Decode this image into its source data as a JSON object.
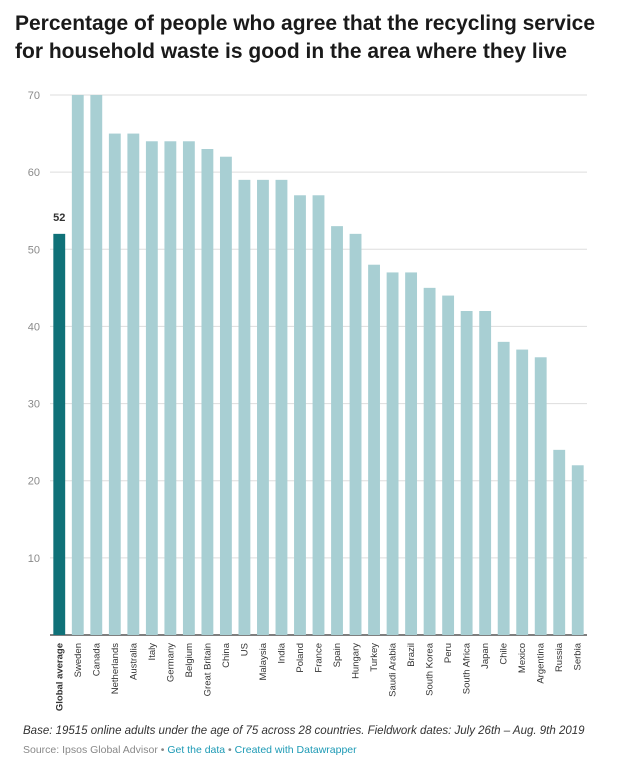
{
  "title": "Percentage of people who agree that the recycling service for household waste is good in the area where they live",
  "chart_data": {
    "type": "bar",
    "title": "Percentage of people who agree that the recycling service for household waste is good in the area where they live",
    "xlabel": "",
    "ylabel": "",
    "ylim": [
      0,
      70
    ],
    "yticks": [
      10,
      20,
      30,
      40,
      50,
      60,
      70
    ],
    "grid": true,
    "categories": [
      "Global average",
      "Sweden",
      "Canada",
      "Netherlands",
      "Australia",
      "Italy",
      "Germany",
      "Belgium",
      "Great Britain",
      "China",
      "US",
      "Malaysia",
      "India",
      "Poland",
      "France",
      "Spain",
      "Hungary",
      "Turkey",
      "Saudi Arabia",
      "Brazil",
      "South Korea",
      "Peru",
      "South Africa",
      "Japan",
      "Chile",
      "Mexico",
      "Argentina",
      "Russia",
      "Serbia"
    ],
    "values": [
      52,
      70,
      70,
      65,
      65,
      64,
      64,
      64,
      63,
      62,
      59,
      59,
      59,
      57,
      57,
      53,
      52,
      48,
      47,
      47,
      45,
      44,
      42,
      42,
      38,
      37,
      36,
      24,
      22
    ],
    "highlight_index": 0,
    "highlight_label": "52",
    "colors": {
      "highlight": "#0f7178",
      "bar": "#a8cfd3",
      "grid": "#dddddd",
      "axis": "#333333"
    }
  },
  "notes": {
    "base": "Base: 19515 online adults under the age of 75 across 28 countries. Fieldwork dates: July 26th – Aug. 9th 2019"
  },
  "footer": {
    "source": "Source: Ipsos Global Advisor",
    "sep1": " • ",
    "get_data": "Get the data",
    "sep2": " • ",
    "created": "Created with Datawrapper"
  }
}
